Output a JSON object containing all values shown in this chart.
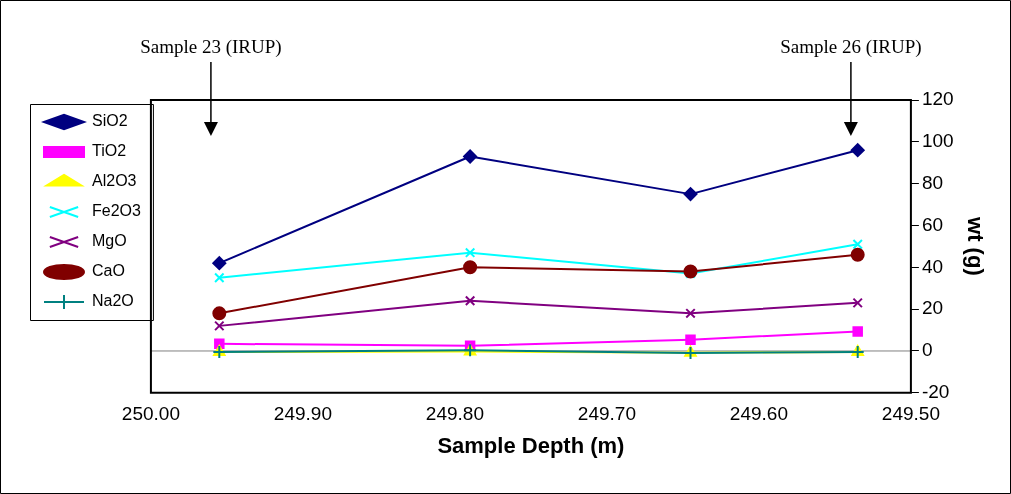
{
  "chart_data": {
    "type": "line",
    "xlabel": "Sample Depth (m)",
    "ylabel": "wt (g)",
    "x": [
      249.955,
      249.79,
      249.645,
      249.535
    ],
    "xlim": [
      250.0,
      249.5
    ],
    "xticks": [
      {
        "value": 250.0,
        "label": "250.00"
      },
      {
        "value": 249.9,
        "label": "249.90"
      },
      {
        "value": 249.8,
        "label": "249.80"
      },
      {
        "value": 249.7,
        "label": "249.70"
      },
      {
        "value": 249.6,
        "label": "249.60"
      },
      {
        "value": 249.5,
        "label": "249.50"
      }
    ],
    "ylim": [
      -20,
      120
    ],
    "yticks": [
      -20,
      0,
      20,
      40,
      60,
      80,
      100,
      120
    ],
    "grid": false,
    "legend": "left",
    "ref_lines": [
      {
        "axis": "y",
        "value": 0,
        "color": "#808080"
      }
    ],
    "annotations": [
      "Sample 23 (IRUP)",
      "Sample 26 (IRUP)"
    ],
    "series": [
      {
        "name": "SiO2",
        "color": "#000080",
        "marker": "diamond",
        "values": [
          42,
          93,
          75,
          96
        ]
      },
      {
        "name": "TiO2",
        "color": "#ff00ff",
        "marker": "square",
        "values": [
          3.4,
          2.5,
          5.4,
          9.3
        ]
      },
      {
        "name": "Al2O3",
        "color": "#ffff00",
        "marker": "triangle",
        "values": [
          -0.5,
          -0.3,
          -0.8,
          -0.5
        ]
      },
      {
        "name": "Fe2O3",
        "color": "#00ffff",
        "marker": "cross",
        "values": [
          35,
          47,
          37,
          51
        ]
      },
      {
        "name": "MgO",
        "color": "#800080",
        "marker": "cross",
        "values": [
          12,
          24,
          18,
          23
        ]
      },
      {
        "name": "CaO",
        "color": "#800000",
        "marker": "circle",
        "values": [
          18,
          40,
          38,
          46
        ]
      },
      {
        "name": "Na2O",
        "color": "#008080",
        "marker": "plus",
        "values": [
          -0.5,
          0.3,
          -1,
          -0.5
        ]
      }
    ]
  }
}
